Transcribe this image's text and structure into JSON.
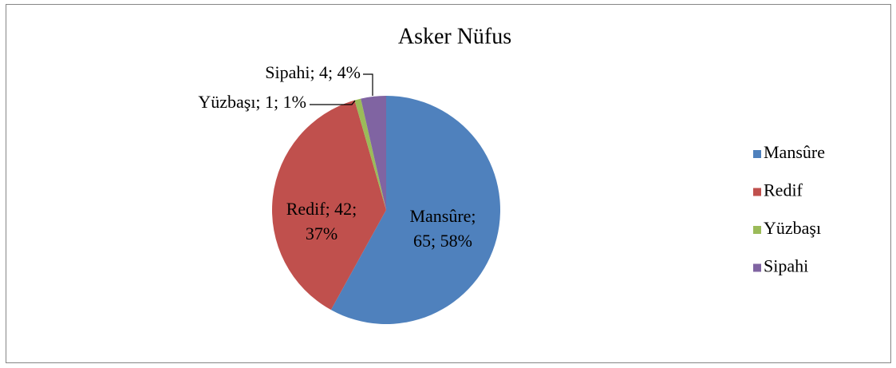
{
  "chart_data": {
    "type": "pie",
    "title": "Asker Nüfus",
    "categories": [
      "Mansûre",
      "Redif",
      "Yüzbaşı",
      "Sipahi"
    ],
    "values": [
      65,
      42,
      1,
      4
    ],
    "value_labels": [
      [
        "Mansûre;",
        "65; 58%"
      ],
      [
        "Redif; 42;",
        "37%"
      ],
      [
        "Yüzbaşı; 1; 1%"
      ],
      [
        "Sipahi; 4; 4%"
      ]
    ],
    "colors": [
      "#4f81bd",
      "#c0504d",
      "#9bbb59",
      "#8064a2"
    ],
    "legend": "right"
  }
}
